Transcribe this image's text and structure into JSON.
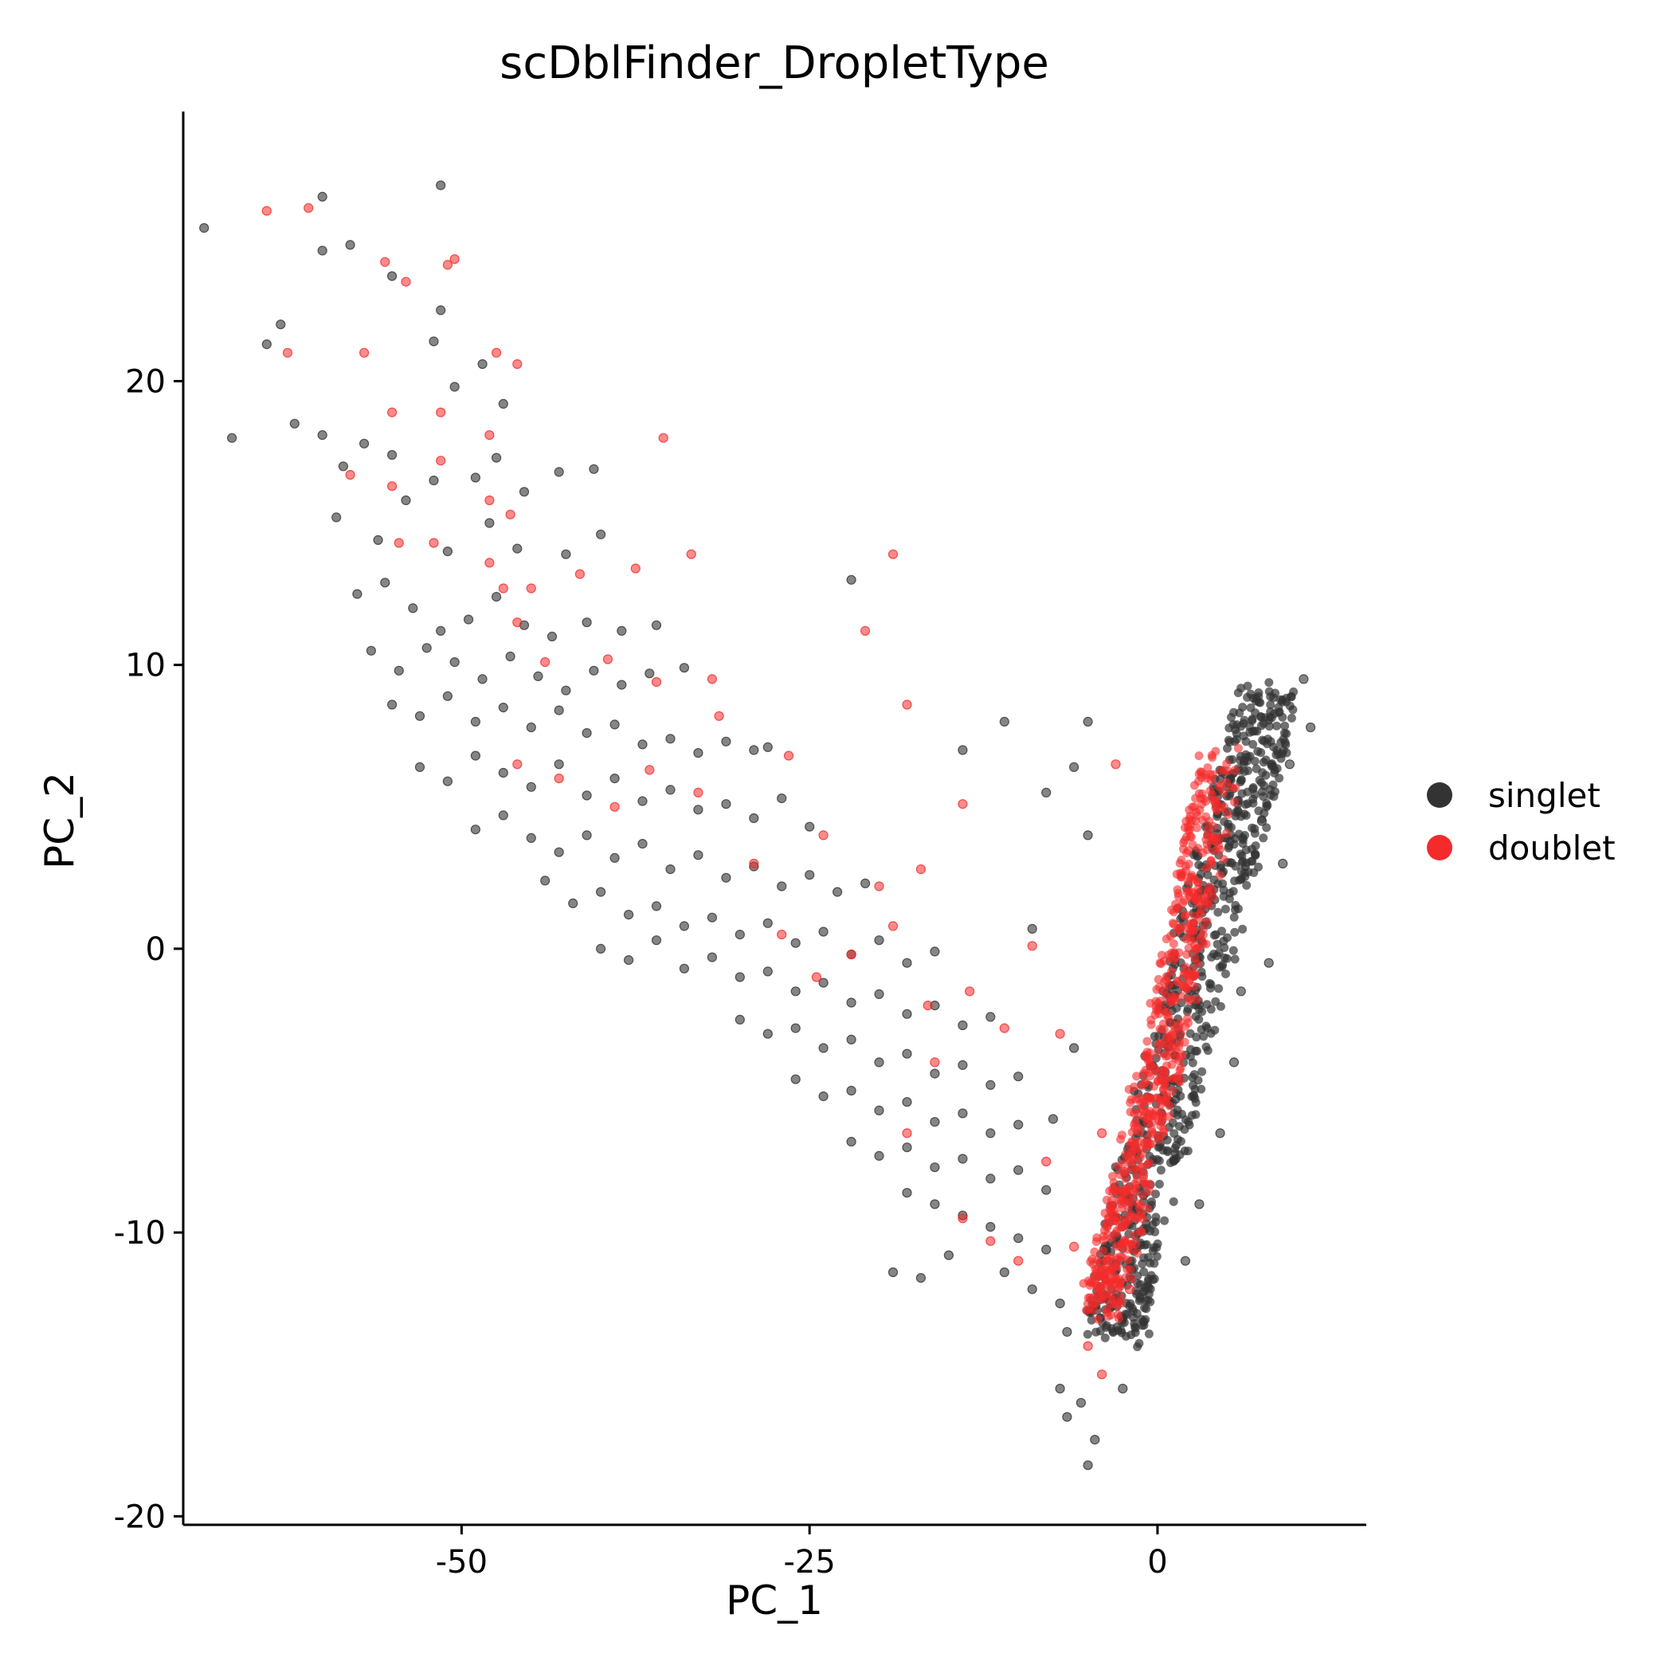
{
  "chart_data": {
    "type": "scatter",
    "title": "scDblFinder_DropletType",
    "xlabel": "PC_1",
    "ylabel": "PC_2",
    "xlim": [
      -70,
      15
    ],
    "ylim": [
      -20.3,
      29.5
    ],
    "xticks": [
      -50,
      -25,
      0
    ],
    "xtick_labels": [
      "-50",
      "-25",
      "0"
    ],
    "yticks": [
      -20,
      -10,
      0,
      10,
      20
    ],
    "ytick_labels": [
      "-20",
      "-10",
      "0",
      "10",
      "20"
    ],
    "grid": false,
    "legend_position": "right",
    "series": [
      {
        "name": "singlet",
        "color": "#333333",
        "scattered_points": [
          [
            -68.5,
            25.4
          ],
          [
            -66.5,
            18.0
          ],
          [
            -64.0,
            21.3
          ],
          [
            -63.0,
            22.0
          ],
          [
            -60.0,
            26.5
          ],
          [
            -60.0,
            24.6
          ],
          [
            -58.0,
            24.8
          ],
          [
            -55.0,
            23.7
          ],
          [
            -51.5,
            26.9
          ],
          [
            -51.5,
            22.5
          ],
          [
            -52.0,
            21.4
          ],
          [
            -48.5,
            20.6
          ],
          [
            -50.5,
            19.8
          ],
          [
            -47.0,
            19.2
          ],
          [
            -62.0,
            18.5
          ],
          [
            -60.0,
            18.1
          ],
          [
            -58.5,
            17.0
          ],
          [
            -57.0,
            17.8
          ],
          [
            -55.0,
            17.4
          ],
          [
            -52.0,
            16.5
          ],
          [
            -49.0,
            16.6
          ],
          [
            -47.5,
            17.3
          ],
          [
            -45.5,
            16.1
          ],
          [
            -43.0,
            16.8
          ],
          [
            -40.5,
            16.9
          ],
          [
            -59.0,
            15.2
          ],
          [
            -56.0,
            14.4
          ],
          [
            -54.0,
            15.8
          ],
          [
            -51.0,
            14.0
          ],
          [
            -48.0,
            15.0
          ],
          [
            -46.0,
            14.1
          ],
          [
            -42.5,
            13.9
          ],
          [
            -40.0,
            14.6
          ],
          [
            -57.5,
            12.5
          ],
          [
            -55.5,
            12.9
          ],
          [
            -53.5,
            12.0
          ],
          [
            -51.5,
            11.2
          ],
          [
            -49.5,
            11.6
          ],
          [
            -47.5,
            12.4
          ],
          [
            -45.5,
            11.4
          ],
          [
            -43.5,
            11.0
          ],
          [
            -41.0,
            11.5
          ],
          [
            -38.5,
            11.2
          ],
          [
            -36.0,
            11.4
          ],
          [
            -56.5,
            10.5
          ],
          [
            -54.5,
            9.8
          ],
          [
            -52.5,
            10.6
          ],
          [
            -50.5,
            10.1
          ],
          [
            -48.5,
            9.5
          ],
          [
            -46.5,
            10.3
          ],
          [
            -44.5,
            9.6
          ],
          [
            -42.5,
            9.1
          ],
          [
            -40.5,
            9.8
          ],
          [
            -38.5,
            9.3
          ],
          [
            -36.5,
            9.7
          ],
          [
            -34.0,
            9.9
          ],
          [
            -55.0,
            8.6
          ],
          [
            -53.0,
            8.2
          ],
          [
            -51.0,
            8.9
          ],
          [
            -49.0,
            8.0
          ],
          [
            -47.0,
            8.5
          ],
          [
            -45.0,
            7.8
          ],
          [
            -43.0,
            8.4
          ],
          [
            -41.0,
            7.6
          ],
          [
            -39.0,
            7.9
          ],
          [
            -37.0,
            7.2
          ],
          [
            -35.0,
            7.4
          ],
          [
            -33.0,
            6.9
          ],
          [
            -31.0,
            7.3
          ],
          [
            -29.0,
            7.0
          ],
          [
            -53.0,
            6.4
          ],
          [
            -51.0,
            5.9
          ],
          [
            -49.0,
            6.8
          ],
          [
            -47.0,
            6.2
          ],
          [
            -45.0,
            5.7
          ],
          [
            -43.0,
            6.5
          ],
          [
            -41.0,
            5.4
          ],
          [
            -39.0,
            6.0
          ],
          [
            -37.0,
            5.2
          ],
          [
            -35.0,
            5.6
          ],
          [
            -33.0,
            4.9
          ],
          [
            -31.0,
            5.1
          ],
          [
            -29.0,
            4.6
          ],
          [
            -27.0,
            5.3
          ],
          [
            -25.0,
            4.3
          ],
          [
            -49.0,
            4.2
          ],
          [
            -47.0,
            4.7
          ],
          [
            -45.0,
            3.9
          ],
          [
            -43.0,
            3.4
          ],
          [
            -41.0,
            4.0
          ],
          [
            -39.0,
            3.2
          ],
          [
            -37.0,
            3.7
          ],
          [
            -35.0,
            2.8
          ],
          [
            -33.0,
            3.3
          ],
          [
            -31.0,
            2.5
          ],
          [
            -29.0,
            2.9
          ],
          [
            -27.0,
            2.2
          ],
          [
            -25.0,
            2.6
          ],
          [
            -23.0,
            2.0
          ],
          [
            -21.0,
            2.3
          ],
          [
            -44.0,
            2.4
          ],
          [
            -42.0,
            1.6
          ],
          [
            -40.0,
            2.0
          ],
          [
            -38.0,
            1.2
          ],
          [
            -36.0,
            1.5
          ],
          [
            -34.0,
            0.8
          ],
          [
            -32.0,
            1.1
          ],
          [
            -30.0,
            0.5
          ],
          [
            -28.0,
            0.9
          ],
          [
            -26.0,
            0.2
          ],
          [
            -24.0,
            0.6
          ],
          [
            -22.0,
            -0.2
          ],
          [
            -20.0,
            0.3
          ],
          [
            -18.0,
            -0.5
          ],
          [
            -16.0,
            -0.1
          ],
          [
            -40.0,
            0.0
          ],
          [
            -38.0,
            -0.4
          ],
          [
            -36.0,
            0.3
          ],
          [
            -34.0,
            -0.7
          ],
          [
            -32.0,
            -0.3
          ],
          [
            -30.0,
            -1.0
          ],
          [
            -28.0,
            -0.8
          ],
          [
            -26.0,
            -1.5
          ],
          [
            -24.0,
            -1.2
          ],
          [
            -22.0,
            -1.9
          ],
          [
            -20.0,
            -1.6
          ],
          [
            -18.0,
            -2.3
          ],
          [
            -16.0,
            -2.0
          ],
          [
            -14.0,
            -2.7
          ],
          [
            -12.0,
            -2.4
          ],
          [
            -30.0,
            -2.5
          ],
          [
            -28.0,
            -3.0
          ],
          [
            -26.0,
            -2.8
          ],
          [
            -24.0,
            -3.5
          ],
          [
            -22.0,
            -3.2
          ],
          [
            -20.0,
            -4.0
          ],
          [
            -18.0,
            -3.7
          ],
          [
            -16.0,
            -4.4
          ],
          [
            -14.0,
            -4.1
          ],
          [
            -12.0,
            -4.8
          ],
          [
            -10.0,
            -4.5
          ],
          [
            -26.0,
            -4.6
          ],
          [
            -24.0,
            -5.2
          ],
          [
            -22.0,
            -5.0
          ],
          [
            -20.0,
            -5.7
          ],
          [
            -18.0,
            -5.4
          ],
          [
            -16.0,
            -6.1
          ],
          [
            -14.0,
            -5.8
          ],
          [
            -12.0,
            -6.5
          ],
          [
            -10.0,
            -6.2
          ],
          [
            -22.0,
            -6.8
          ],
          [
            -20.0,
            -7.3
          ],
          [
            -18.0,
            -7.0
          ],
          [
            -16.0,
            -7.7
          ],
          [
            -14.0,
            -7.4
          ],
          [
            -12.0,
            -8.1
          ],
          [
            -10.0,
            -7.8
          ],
          [
            -8.0,
            -8.5
          ],
          [
            -18.0,
            -8.6
          ],
          [
            -16.0,
            -9.0
          ],
          [
            -14.0,
            -9.4
          ],
          [
            -12.0,
            -9.8
          ],
          [
            -10.0,
            -10.2
          ],
          [
            -8.0,
            -10.6
          ],
          [
            -15.0,
            -10.8
          ],
          [
            -11.0,
            -11.4
          ],
          [
            -9.0,
            -12.0
          ],
          [
            -7.0,
            -12.5
          ],
          [
            -19.0,
            -11.4
          ],
          [
            -17.0,
            -11.6
          ],
          [
            -28.0,
            7.1
          ],
          [
            -22.0,
            13.0
          ],
          [
            -11.0,
            8.0
          ],
          [
            -5.0,
            8.0
          ],
          [
            -14.0,
            7.0
          ],
          [
            -6.0,
            6.4
          ],
          [
            -8.0,
            5.5
          ],
          [
            -9.0,
            0.7
          ],
          [
            -5.0,
            4.0
          ],
          [
            -6.0,
            -3.5
          ],
          [
            -7.5,
            -6.0
          ],
          [
            -6.5,
            -13.5
          ],
          [
            -7.0,
            -15.5
          ],
          [
            -5.5,
            -16.0
          ],
          [
            -6.5,
            -16.5
          ],
          [
            -4.5,
            -17.3
          ],
          [
            -5.0,
            -18.2
          ],
          [
            -2.5,
            -15.5
          ],
          [
            9.0,
            3.0
          ],
          [
            8.0,
            -0.5
          ],
          [
            10.5,
            9.5
          ],
          [
            11.0,
            7.8
          ],
          [
            9.5,
            6.5
          ],
          [
            7.5,
            4.5
          ],
          [
            6.0,
            -1.5
          ],
          [
            5.5,
            -4.0
          ],
          [
            4.5,
            -6.5
          ],
          [
            3.0,
            -9.0
          ],
          [
            2.0,
            -11.0
          ]
        ],
        "core_band": [
          [
            8.0,
            9.0
          ],
          [
            7.0,
            7.0
          ],
          [
            6.0,
            5.0
          ],
          [
            4.5,
            2.5
          ],
          [
            3.0,
            -0.5
          ],
          [
            1.5,
            -3.5
          ],
          [
            0.0,
            -6.5
          ],
          [
            -1.5,
            -9.5
          ],
          [
            -2.5,
            -12.0
          ],
          [
            -3.0,
            -13.5
          ]
        ],
        "core_band_width_x": 4.5
      },
      {
        "name": "doublet",
        "color": "#f52b2b",
        "scattered_points": [
          [
            -64.0,
            26.0
          ],
          [
            -61.0,
            26.1
          ],
          [
            -55.5,
            24.2
          ],
          [
            -51.0,
            24.1
          ],
          [
            -54.0,
            23.5
          ],
          [
            -50.5,
            24.3
          ],
          [
            -62.5,
            21.0
          ],
          [
            -57.0,
            21.0
          ],
          [
            -47.5,
            21.0
          ],
          [
            -46.0,
            20.6
          ],
          [
            -55.0,
            18.9
          ],
          [
            -51.5,
            18.9
          ],
          [
            -48.0,
            18.1
          ],
          [
            -35.5,
            18.0
          ],
          [
            -58.0,
            16.7
          ],
          [
            -55.0,
            16.3
          ],
          [
            -51.5,
            17.2
          ],
          [
            -48.0,
            15.8
          ],
          [
            -46.5,
            15.3
          ],
          [
            -54.5,
            14.3
          ],
          [
            -52.0,
            14.3
          ],
          [
            -48.0,
            13.6
          ],
          [
            -47.0,
            12.7
          ],
          [
            -45.0,
            12.7
          ],
          [
            -41.5,
            13.2
          ],
          [
            -37.5,
            13.4
          ],
          [
            -33.5,
            13.9
          ],
          [
            -46.0,
            11.5
          ],
          [
            -44.0,
            10.1
          ],
          [
            -39.5,
            10.2
          ],
          [
            -36.0,
            9.4
          ],
          [
            -32.0,
            9.5
          ],
          [
            -46.0,
            6.5
          ],
          [
            -43.0,
            6.0
          ],
          [
            -39.0,
            5.0
          ],
          [
            -36.5,
            6.3
          ],
          [
            -33.0,
            5.5
          ],
          [
            -31.5,
            8.2
          ],
          [
            -26.5,
            6.8
          ],
          [
            -24.0,
            4.0
          ],
          [
            -20.0,
            2.2
          ],
          [
            -17.0,
            2.8
          ],
          [
            -14.0,
            5.1
          ],
          [
            -21.0,
            11.2
          ],
          [
            -19.0,
            13.9
          ],
          [
            -18.0,
            8.6
          ],
          [
            -29.0,
            3.0
          ],
          [
            -27.0,
            0.5
          ],
          [
            -24.5,
            -1.0
          ],
          [
            -22.0,
            -0.2
          ],
          [
            -19.0,
            0.8
          ],
          [
            -16.5,
            -2.0
          ],
          [
            -13.5,
            -1.5
          ],
          [
            -11.0,
            -2.8
          ],
          [
            -9.0,
            0.1
          ],
          [
            -18.0,
            -6.5
          ],
          [
            -16.0,
            -4.0
          ],
          [
            -14.0,
            -9.5
          ],
          [
            -12.0,
            -10.3
          ],
          [
            -10.0,
            -11.0
          ],
          [
            -8.0,
            -7.5
          ],
          [
            -7.0,
            -3.0
          ],
          [
            -6.0,
            -10.5
          ],
          [
            -5.0,
            -14.0
          ],
          [
            -4.0,
            -15.0
          ],
          [
            -2.0,
            -12.0
          ],
          [
            -3.0,
            6.5
          ],
          [
            -4.0,
            -6.5
          ]
        ],
        "core_band": [
          [
            4.5,
            6.5
          ],
          [
            3.5,
            4.0
          ],
          [
            2.5,
            1.5
          ],
          [
            1.5,
            -1.0
          ],
          [
            0.5,
            -3.5
          ],
          [
            -0.5,
            -5.5
          ],
          [
            -1.5,
            -7.5
          ],
          [
            -2.5,
            -9.5
          ],
          [
            -3.5,
            -11.5
          ],
          [
            -4.0,
            -12.5
          ]
        ],
        "core_band_width_x": 3.0
      }
    ]
  }
}
